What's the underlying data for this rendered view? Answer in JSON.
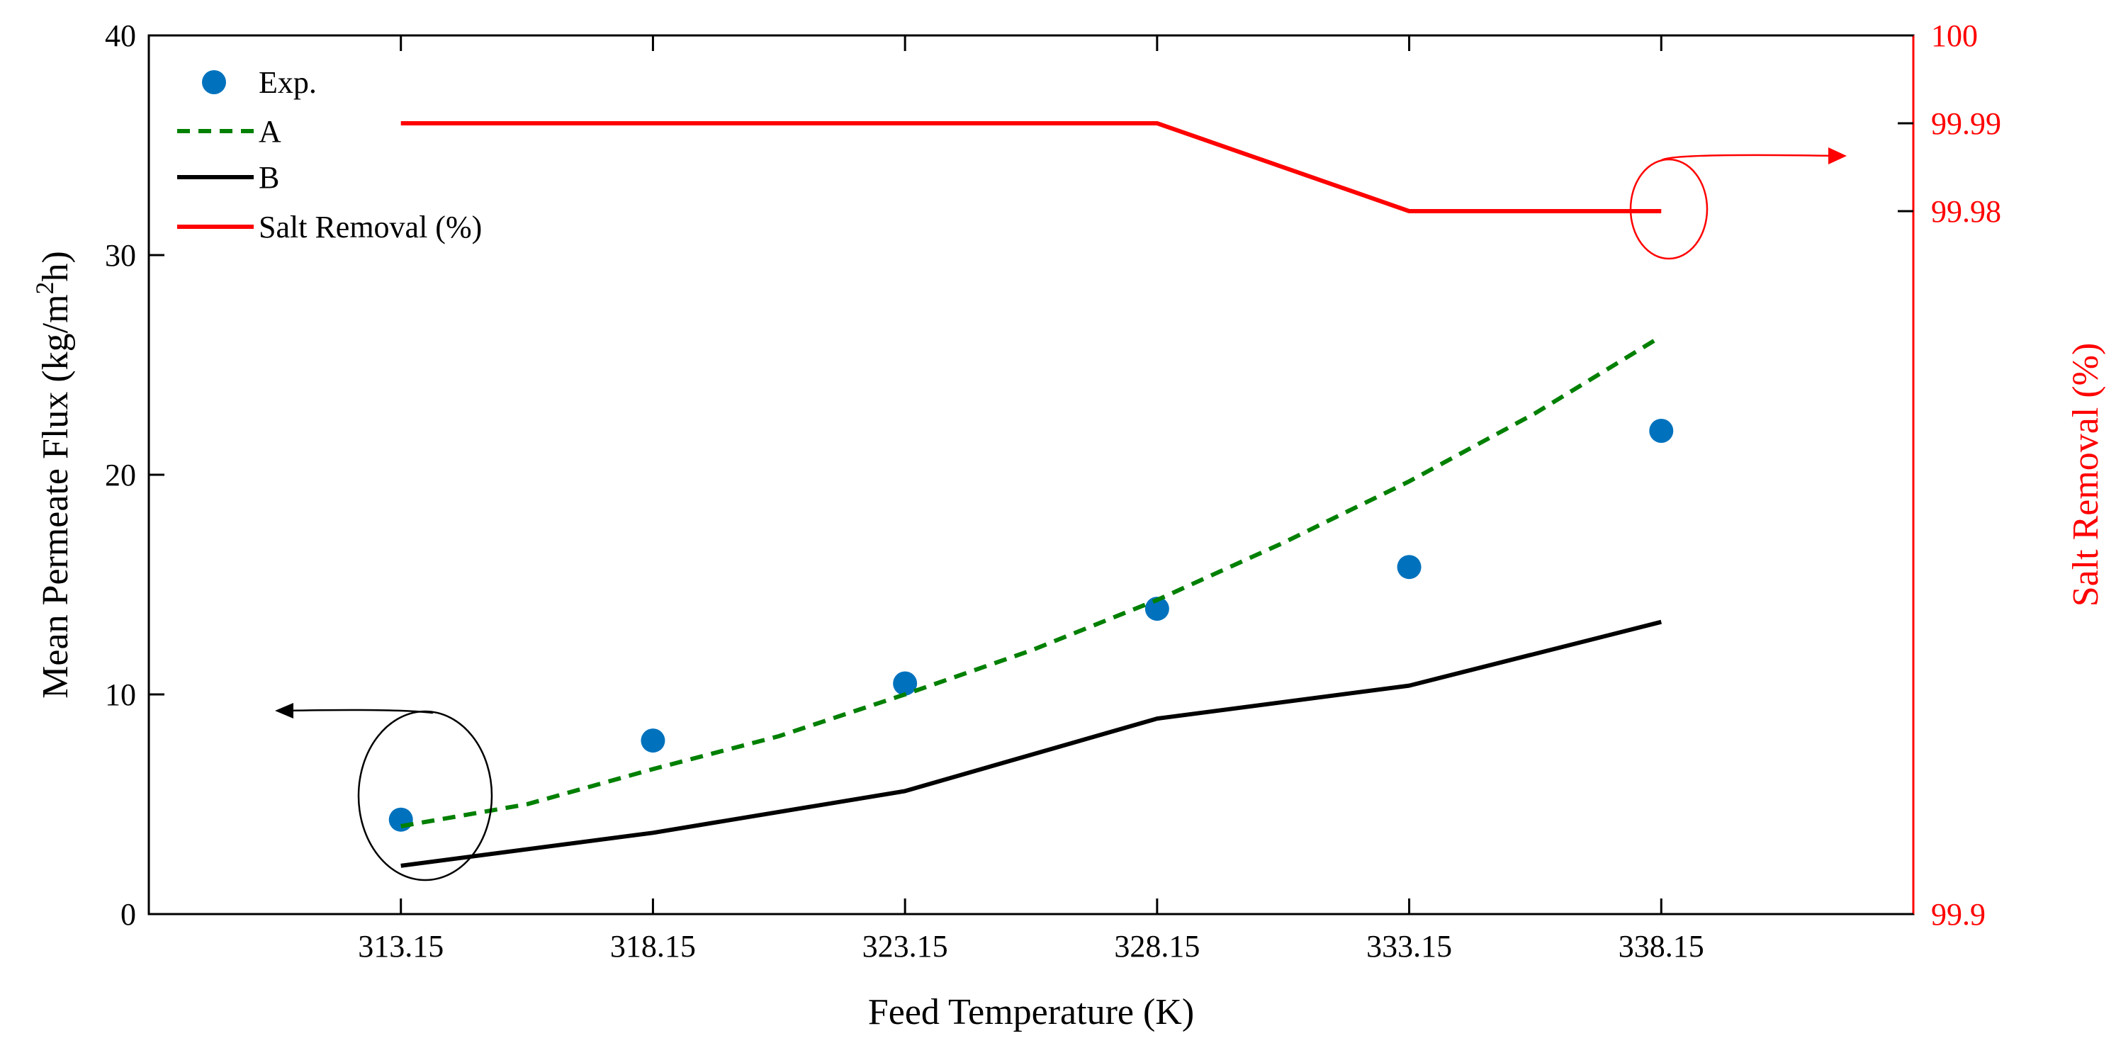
{
  "chart_data": {
    "type": "line",
    "title": "",
    "xlabel": "Feed Temperature (K)",
    "ylabel": "Mean Permeate Flux (kg/m2h)",
    "ylabel_parts": {
      "prefix": "Mean Permeate Flux (kg/m",
      "superscript": "2",
      "suffix": "h)"
    },
    "ylabel_right": "Salt Removal (%)",
    "x_tick_labels": [
      "313.15",
      "318.15",
      "323.15",
      "328.15",
      "333.15",
      "338.15"
    ],
    "xlim": [
      308.15,
      343.15
    ],
    "ylim": [
      0,
      40
    ],
    "y_ticks": [
      0,
      10,
      20,
      30,
      40
    ],
    "y_tick_labels": [
      "0",
      "10",
      "20",
      "30",
      "40"
    ],
    "ylim_right": [
      99.9,
      100.0
    ],
    "y_ticks_right": [
      99.9,
      99.98,
      99.99,
      100
    ],
    "y_tick_labels_right": [
      "99.9",
      "99.98",
      "99.99",
      "100"
    ],
    "grid": false,
    "legend_position": "top-left",
    "series": [
      {
        "name": "Exp.",
        "style": "markers",
        "color": "#0072BD",
        "axis": "left",
        "x": [
          313.15,
          318.15,
          323.15,
          328.15,
          333.15,
          338.15
        ],
        "values": [
          4.3,
          7.9,
          10.5,
          13.9,
          15.8,
          22.0
        ]
      },
      {
        "name": "A",
        "style": "dashed",
        "color": "#008000",
        "axis": "left",
        "x": [
          313.15,
          315.65,
          318.15,
          320.65,
          323.15,
          325.65,
          328.15,
          330.65,
          333.15,
          335.65,
          338.15
        ],
        "values": [
          4.0,
          5.0,
          6.6,
          8.1,
          10.0,
          12.0,
          14.3,
          16.9,
          19.7,
          22.8,
          26.3
        ]
      },
      {
        "name": "B",
        "style": "solid",
        "color": "#000000",
        "axis": "left",
        "x": [
          313.15,
          318.15,
          323.15,
          328.15,
          333.15,
          338.15
        ],
        "values": [
          2.2,
          3.7,
          5.6,
          8.9,
          10.4,
          13.3
        ]
      },
      {
        "name": "Salt Removal (%)",
        "style": "solid",
        "color": "#ff0000",
        "axis": "right",
        "x": [
          313.15,
          318.15,
          323.15,
          328.15,
          333.15,
          338.15
        ],
        "values": [
          99.99,
          99.99,
          99.99,
          99.99,
          99.98,
          99.98
        ]
      }
    ]
  }
}
